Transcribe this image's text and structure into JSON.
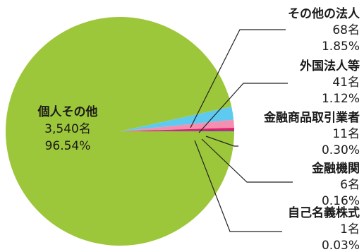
{
  "chart_data": {
    "type": "pie",
    "title": "",
    "slices": [
      {
        "name": "個人その他",
        "count": "3,540名",
        "percent": "96.54%",
        "value": 96.54,
        "color": "#9dc73a"
      },
      {
        "name": "その他の法人",
        "count": "68名",
        "percent": "1.85%",
        "value": 1.85,
        "color": "#5ecaf0"
      },
      {
        "name": "外国法人等",
        "count": "41名",
        "percent": "1.12%",
        "value": 1.12,
        "color": "#f48fb1"
      },
      {
        "name": "金融商品取引業者",
        "count": "11名",
        "percent": "0.30%",
        "value": 0.3,
        "color": "#e0206f"
      },
      {
        "name": "金融機関",
        "count": "6名",
        "percent": "0.16%",
        "value": 0.16,
        "color": "#7b2a8a"
      },
      {
        "name": "自己名義株式",
        "count": "1名",
        "percent": "0.03%",
        "value": 0.03,
        "color": "#3a3a3a"
      }
    ],
    "legend": "callouts"
  }
}
